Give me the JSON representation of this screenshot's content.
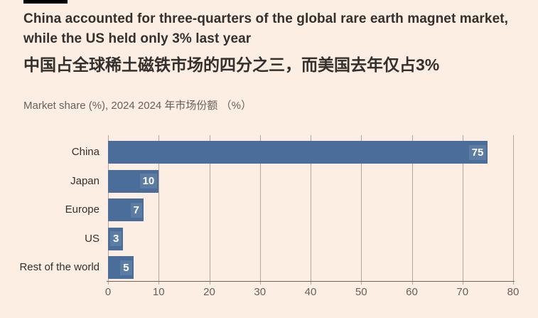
{
  "header": {
    "title_en": "China accounted for three-quarters of the global rare earth magnet market,\nwhile the US held only 3% last year",
    "title_zh": "中国占全球稀土磁铁市场的四分之三，而美国去年仅占3%",
    "subtitle": "Market share (%), 2024  2024 年市场份额 （%）"
  },
  "colors": {
    "background": "#fdeee4",
    "bar": "#4a6d99",
    "value_label_bg": "#5b7ca3",
    "value_label_text": "#ffffff",
    "headline_text": "#33302e",
    "subtitle_text": "#66605c",
    "gridline": "#b5a79b",
    "axis_line": "#6b645e",
    "top_bar": "#000000"
  },
  "chart_data": {
    "type": "bar",
    "orientation": "horizontal",
    "title": "China accounted for three-quarters of the global rare earth magnet market, while the US held only 3% last year",
    "title_zh": "中国占全球稀土磁铁市场的四分之三，而美国去年仅占3%",
    "subtitle": "Market share (%), 2024  2024 年市场份额 （%）",
    "categories": [
      "China",
      "Japan",
      "Europe",
      "US",
      "Rest of the world"
    ],
    "values": [
      75,
      10,
      7,
      3,
      5
    ],
    "xlabel": "",
    "ylabel": "",
    "xlim": [
      0,
      80
    ],
    "xticks": [
      0,
      10,
      20,
      30,
      40,
      50,
      60,
      70,
      80
    ],
    "grid": true,
    "legend": false,
    "value_labels": true
  }
}
